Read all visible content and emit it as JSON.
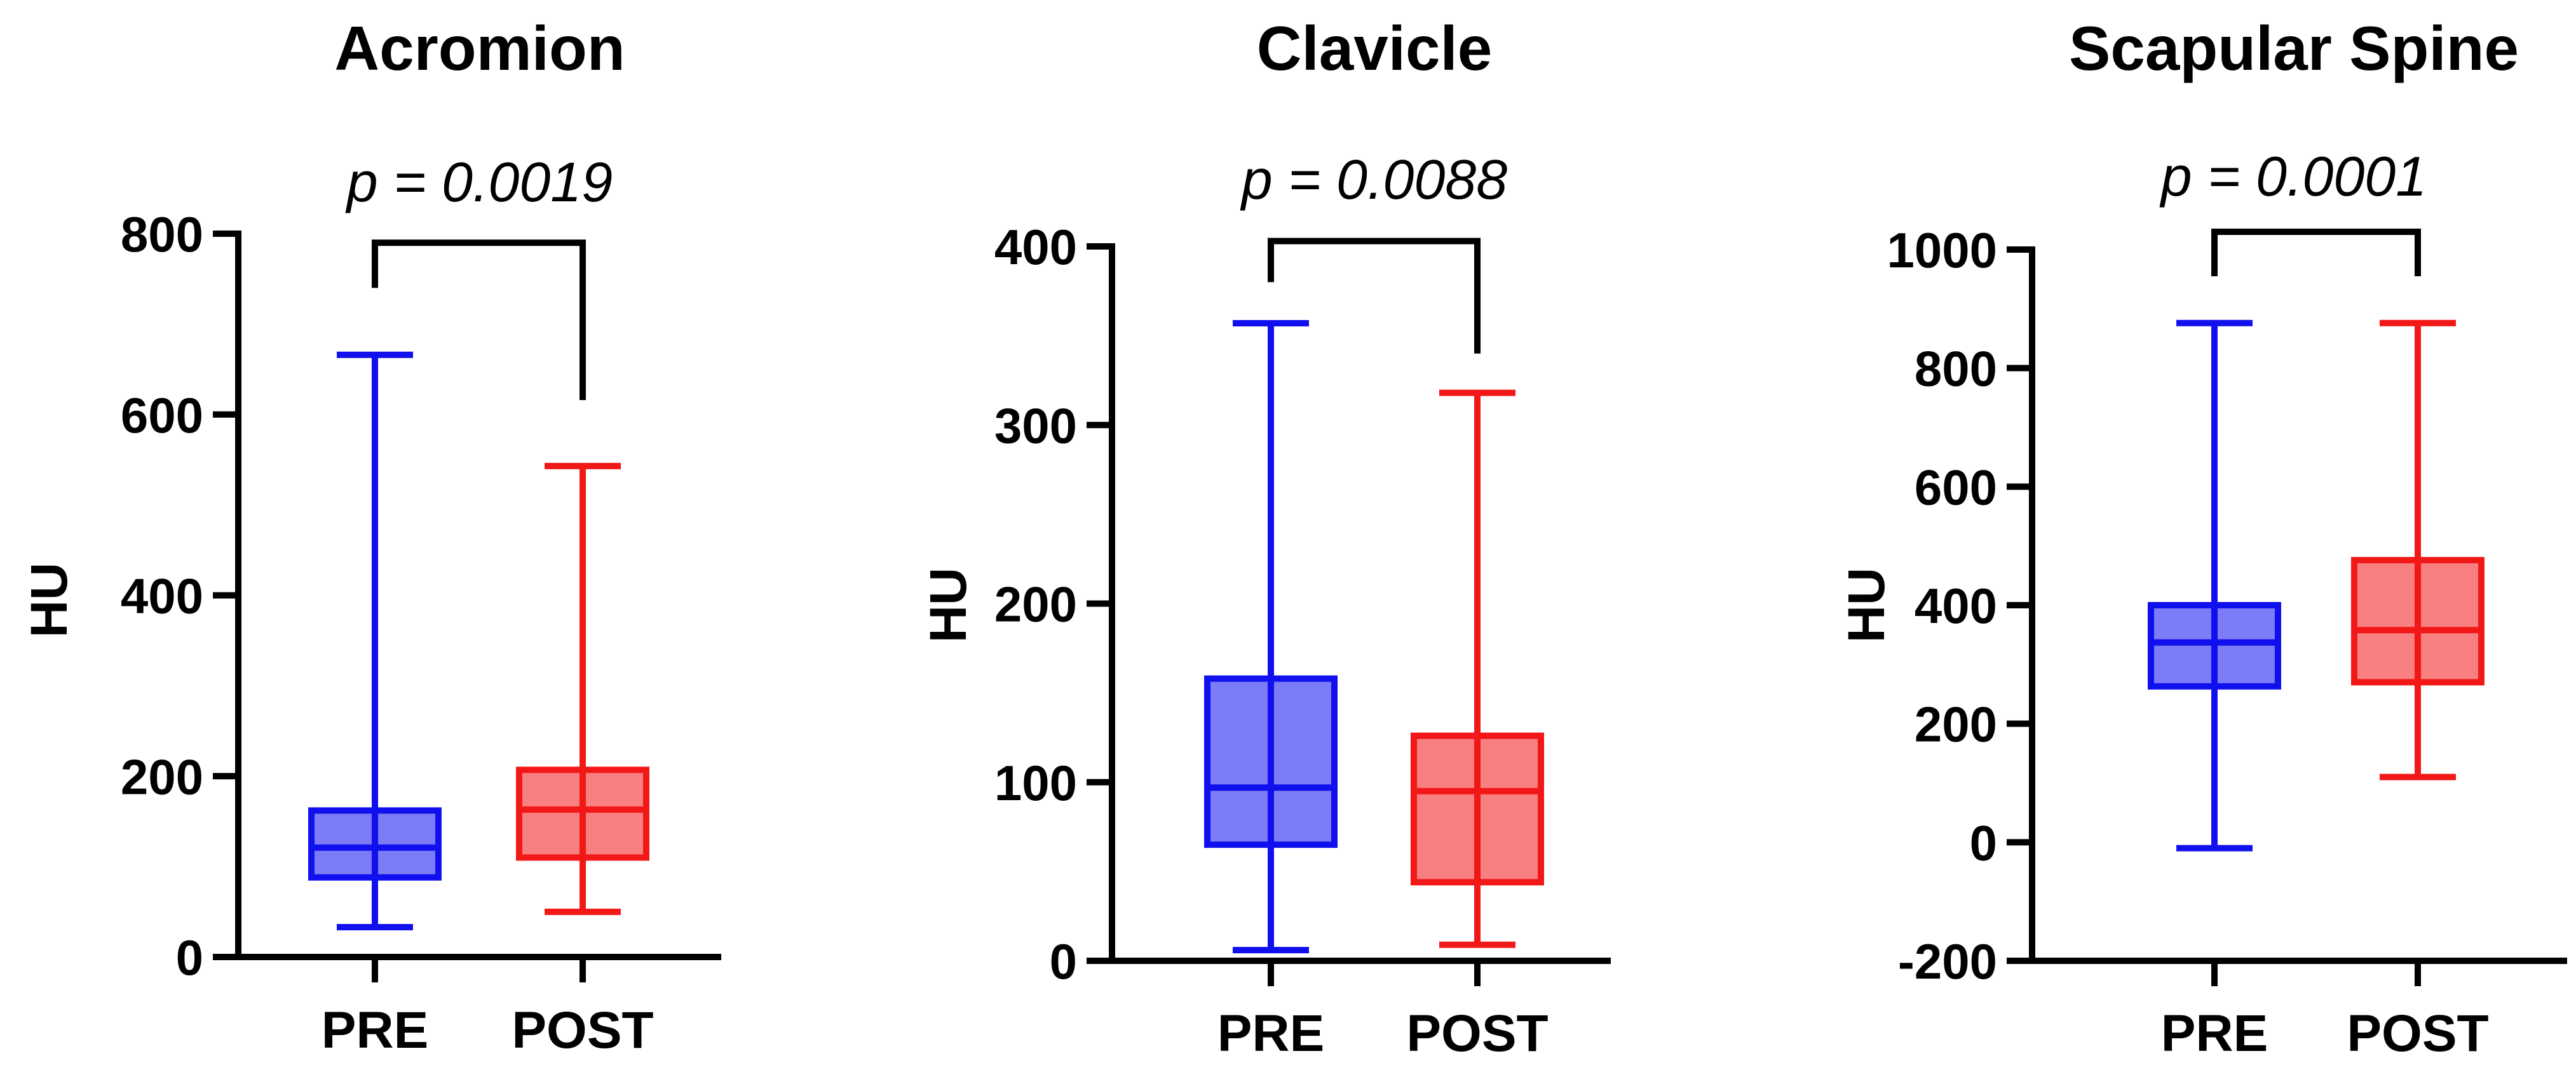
{
  "figure": {
    "box_fill_opacity": 0.55
  },
  "chart_data": [
    {
      "type": "box",
      "title": "Acromion",
      "xlabel": "",
      "ylabel": "HU",
      "ylim": [
        0,
        800
      ],
      "yticks": [
        0,
        200,
        400,
        600,
        800
      ],
      "categories": [
        "PRE",
        "POST"
      ],
      "series": [
        {
          "category": "PRE",
          "color": "#1010ee",
          "min": 33,
          "q1": 88,
          "median": 121,
          "q3": 162,
          "max": 666
        },
        {
          "category": "POST",
          "color": "#f21818",
          "min": 50,
          "q1": 110,
          "median": 163,
          "q3": 207,
          "max": 543
        }
      ],
      "annotation": {
        "text": "p = 0.0019",
        "bracket_y": 790,
        "left_tip": 740,
        "right_tip": 616
      }
    },
    {
      "type": "box",
      "title": "Clavicle",
      "xlabel": "",
      "ylabel": "HU",
      "ylim": [
        0,
        400
      ],
      "yticks": [
        0,
        100,
        200,
        300,
        400
      ],
      "categories": [
        "PRE",
        "POST"
      ],
      "series": [
        {
          "category": "PRE",
          "color": "#1010ee",
          "min": 6,
          "q1": 65,
          "median": 97,
          "q3": 158,
          "max": 357
        },
        {
          "category": "POST",
          "color": "#f21818",
          "min": 9,
          "q1": 44,
          "median": 95,
          "q3": 126,
          "max": 318
        }
      ],
      "annotation": {
        "text": "p = 0.0088",
        "bracket_y": 403,
        "left_tip": 380,
        "right_tip": 340
      }
    },
    {
      "type": "box",
      "title": "Scapular Spine",
      "xlabel": "",
      "ylabel": "HU",
      "ylim": [
        -200,
        1000
      ],
      "yticks": [
        -200,
        0,
        200,
        400,
        600,
        800,
        1000
      ],
      "categories": [
        "PRE",
        "POST"
      ],
      "series": [
        {
          "category": "PRE",
          "color": "#1010ee",
          "min": -10,
          "q1": 263,
          "median": 337,
          "q3": 400,
          "max": 876
        },
        {
          "category": "POST",
          "color": "#f21818",
          "min": 110,
          "q1": 270,
          "median": 358,
          "q3": 476,
          "max": 876
        }
      ],
      "annotation": {
        "text": "p = 0.0001",
        "bracket_y": 1030,
        "left_tip": 955,
        "right_tip": 955
      }
    }
  ]
}
